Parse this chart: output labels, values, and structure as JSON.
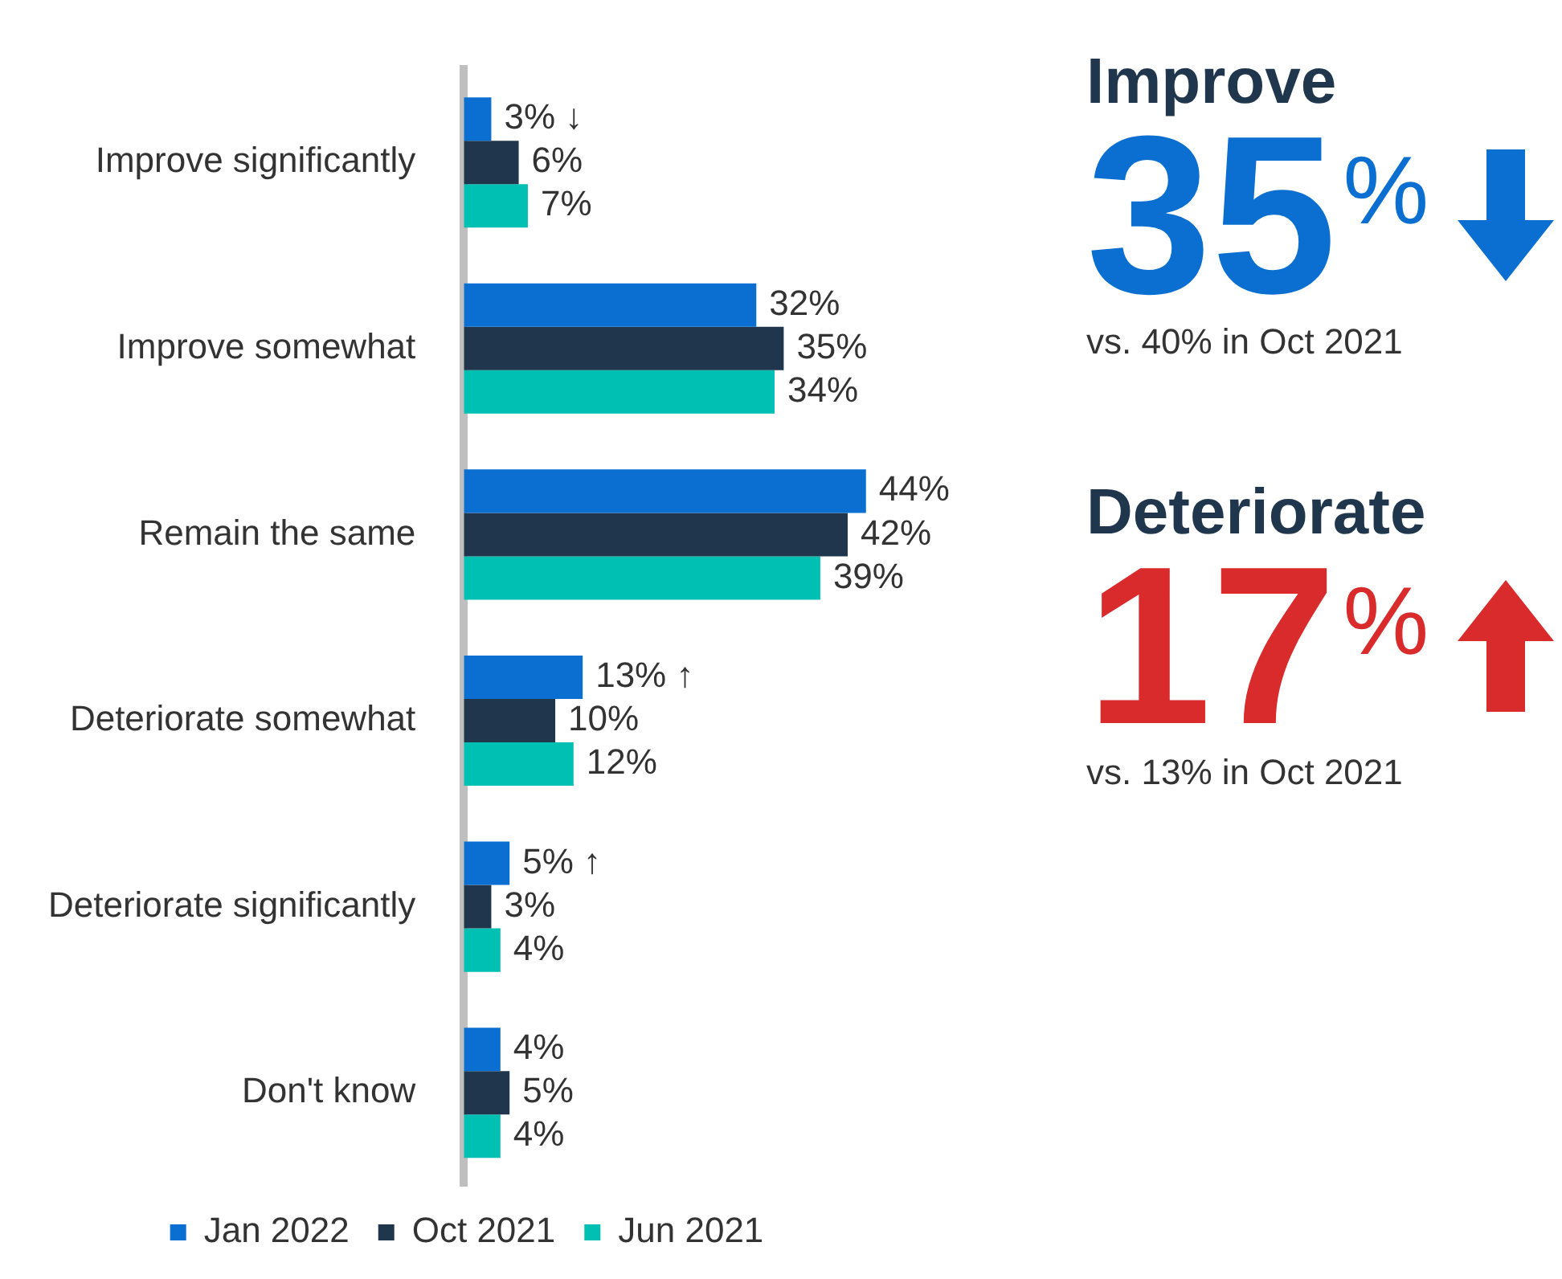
{
  "chart_data": [
    {
      "type": "bar",
      "orientation": "horizontal",
      "categories": [
        "Improve significantly",
        "Improve somewhat",
        "Remain the same",
        "Deteriorate somewhat",
        "Deteriorate significantly",
        "Don't know"
      ],
      "series": [
        {
          "name": "Jan 2022",
          "color": "#0a6fd1",
          "values": [
            3,
            32,
            44,
            13,
            5,
            4
          ],
          "value_labels": [
            "3% ↓",
            "32%",
            "44%",
            "13% ↑",
            "5% ↑",
            "4%"
          ]
        },
        {
          "name": "Oct 2021",
          "color": "#1f364d",
          "values": [
            6,
            35,
            42,
            10,
            3,
            5
          ],
          "value_labels": [
            "6%",
            "35%",
            "42%",
            "10%",
            "3%",
            "5%"
          ]
        },
        {
          "name": "Jun 2021",
          "color": "#00bfb3",
          "values": [
            7,
            34,
            39,
            12,
            4,
            4
          ],
          "value_labels": [
            "7%",
            "34%",
            "39%",
            "12%",
            "4%",
            "4%"
          ]
        }
      ],
      "legend": "bottom",
      "tick_labels": "y"
    },
    {
      "type": "other",
      "annotations": [
        "Improve",
        "35%",
        "vs. 40% in Oct 2021",
        "Deteriorate",
        "17%",
        "vs. 13% in Oct 2021"
      ]
    }
  ]
}
